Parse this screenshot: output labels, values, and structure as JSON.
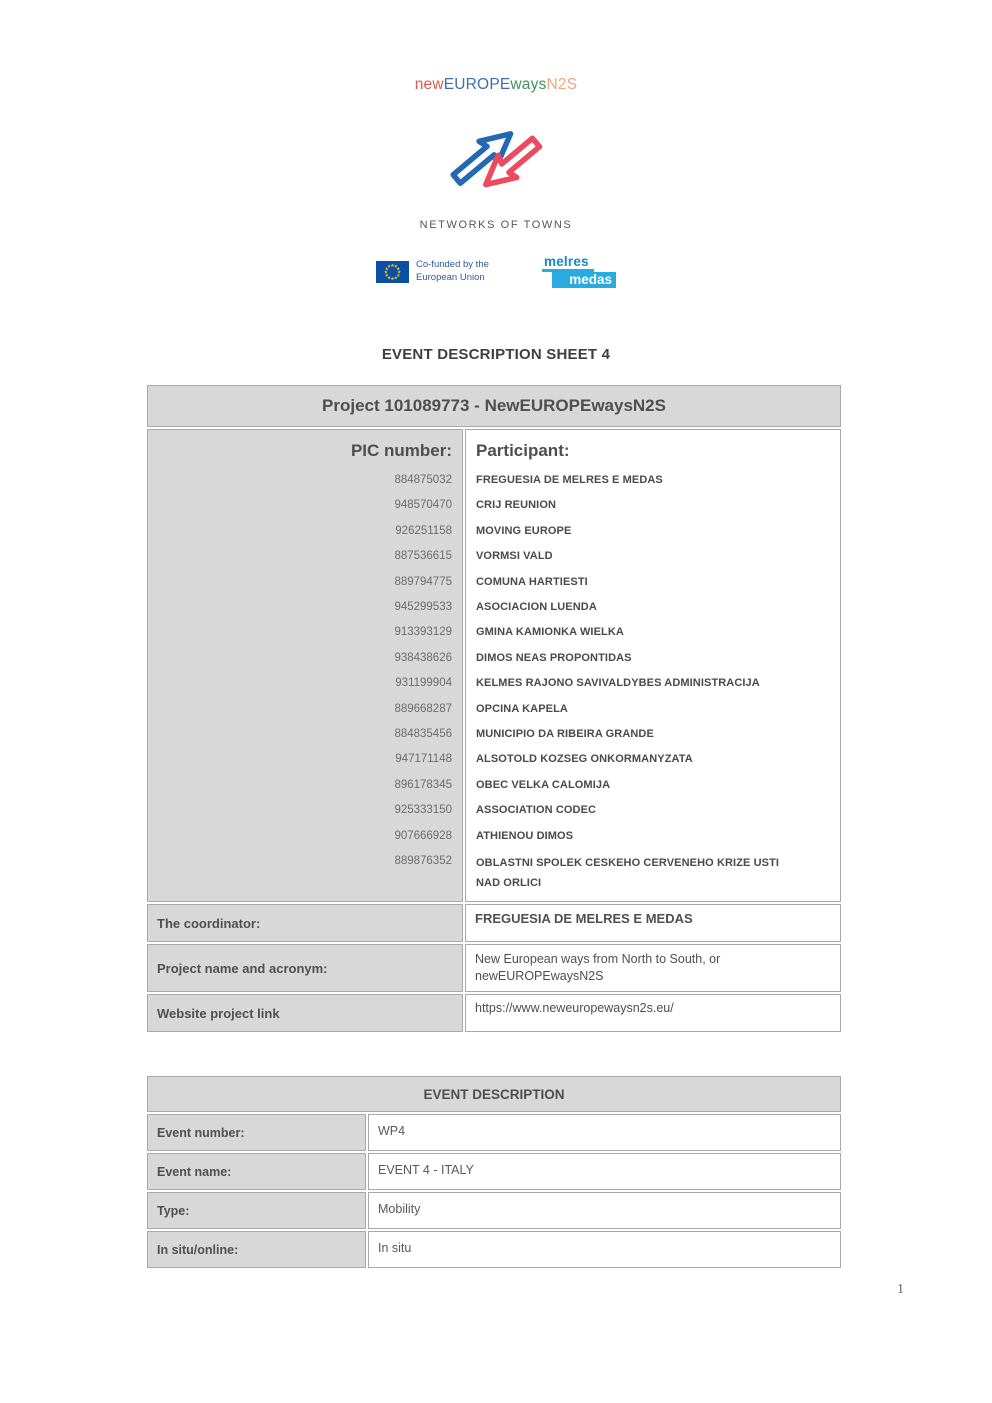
{
  "logo": {
    "wordmark": [
      {
        "text": "new",
        "color": "#e2574c"
      },
      {
        "text": "EUROPE",
        "color": "#3b6db4"
      },
      {
        "text": "ways",
        "color": "#43905f"
      },
      {
        "text": "N2S",
        "color": "#f2a47f"
      }
    ],
    "caption": "NETWORKS OF TOWNS"
  },
  "eu_badge": {
    "label": "Co-funded by the European Union"
  },
  "partner_logo": {
    "top": "melres",
    "bottom": "medas"
  },
  "page": {
    "heading": "EVENT DESCRIPTION SHEET 4",
    "page_number": "1"
  },
  "colors": {
    "arrow_blue": "#2268b2",
    "arrow_red": "#ee4a5e",
    "eu_flag_blue": "#0b4ea2",
    "eu_star_yellow": "#ffcc00",
    "partner_cyan": "#29abe2",
    "table_gray": "#d8d8d8",
    "border_gray": "#a9a9a9"
  },
  "project_table": {
    "title": "Project 101089773 - NewEUROPEwaysN2S",
    "pic_header": "PIC number:",
    "participant_header": "Participant:",
    "participants": [
      {
        "pic": "884875032",
        "name": "FREGUESIA DE MELRES E MEDAS"
      },
      {
        "pic": "948570470",
        "name": "CRIJ REUNION"
      },
      {
        "pic": "926251158",
        "name": "MOVING EUROPE"
      },
      {
        "pic": "887536615",
        "name": "VORMSI VALD"
      },
      {
        "pic": "889794775",
        "name": "COMUNA HARTIESTI"
      },
      {
        "pic": "945299533",
        "name": "ASOCIACION LUENDA"
      },
      {
        "pic": "913393129",
        "name": "GMINA KAMIONKA WIELKA"
      },
      {
        "pic": "938438626",
        "name": "DIMOS NEAS PROPONTIDAS"
      },
      {
        "pic": "931199904",
        "name": "KELMES RAJONO SAVIVALDYBES ADMINISTRACIJA"
      },
      {
        "pic": "889668287",
        "name": "OPCINA KAPELA"
      },
      {
        "pic": "884835456",
        "name": "MUNICIPIO DA RIBEIRA GRANDE"
      },
      {
        "pic": "947171148",
        "name": "ALSOTOLD KOZSEG ONKORMANYZATA"
      },
      {
        "pic": "896178345",
        "name": "OBEC VELKA CALOMIJA"
      },
      {
        "pic": "925333150",
        "name": "ASSOCIATION CODEC"
      },
      {
        "pic": "907666928",
        "name": "ATHIENOU DIMOS"
      },
      {
        "pic": "889876352",
        "name": "OBLASTNI SPOLEK CESKEHO CERVENEHO KRIZE USTI\nNAD ORLICI"
      }
    ],
    "rows": [
      {
        "label": "The coordinator:",
        "value": "FREGUESIA DE MELRES E MEDAS"
      },
      {
        "label": "Project name and acronym:",
        "value": "New European ways from North to South, or\nnewEUROPEwaysN2S"
      },
      {
        "label": "Website project link",
        "value": "https://www.neweuropewaysn2s.eu/"
      }
    ]
  },
  "event_table": {
    "title": "EVENT DESCRIPTION",
    "rows": [
      {
        "label": "Event number:",
        "value": "WP4"
      },
      {
        "label": "Event name:",
        "value": "EVENT 4 - ITALY"
      },
      {
        "label": "Type:",
        "value": "Mobility"
      },
      {
        "label": "In situ/online:",
        "value": "In situ"
      }
    ]
  }
}
